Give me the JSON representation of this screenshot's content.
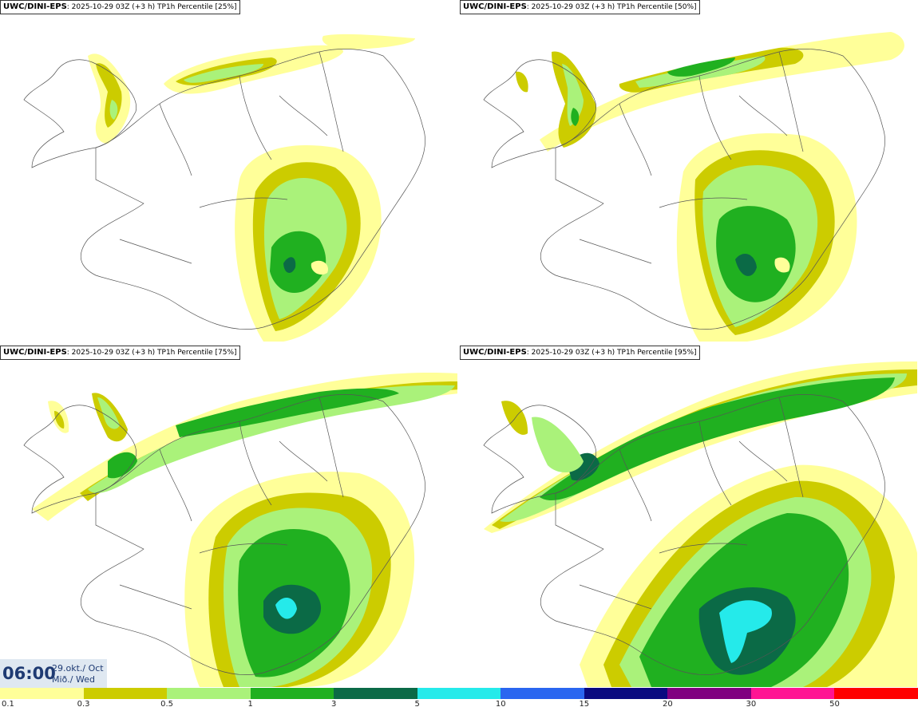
{
  "panels": [
    {
      "source": "UWC/DINI-EPS",
      "meta": ": 2025-10-29 03Z (+3 h)",
      "title": "TP1h Percentile [25%]",
      "percentile": 25
    },
    {
      "source": "UWC/DINI-EPS",
      "meta": ": 2025-10-29 03Z (+3 h)",
      "title": "TP1h Percentile [50%]",
      "percentile": 50
    },
    {
      "source": "UWC/DINI-EPS",
      "meta": ": 2025-10-29 03Z (+3 h)",
      "title": "TP1h Percentile [75%]",
      "percentile": 75
    },
    {
      "source": "UWC/DINI-EPS",
      "meta": ": 2025-10-29 03Z (+3 h)",
      "title": "TP1h Percentile [95%]",
      "percentile": 95
    }
  ],
  "time": {
    "clock": "06:00",
    "date": "29.okt./ Oct",
    "day": "Mið./ Wed"
  },
  "colorbar": {
    "colors": [
      "#ffff99",
      "#cccc00",
      "#aaf27a",
      "#20b020",
      "#0b6a46",
      "#25eaea",
      "#2a66f0",
      "#0a0a80",
      "#800080",
      "#ff1493",
      "#ff0000"
    ],
    "ticks": [
      "0.1",
      "0.3",
      "0.5",
      "1",
      "3",
      "5",
      "10",
      "15",
      "20",
      "30",
      "50"
    ]
  }
}
